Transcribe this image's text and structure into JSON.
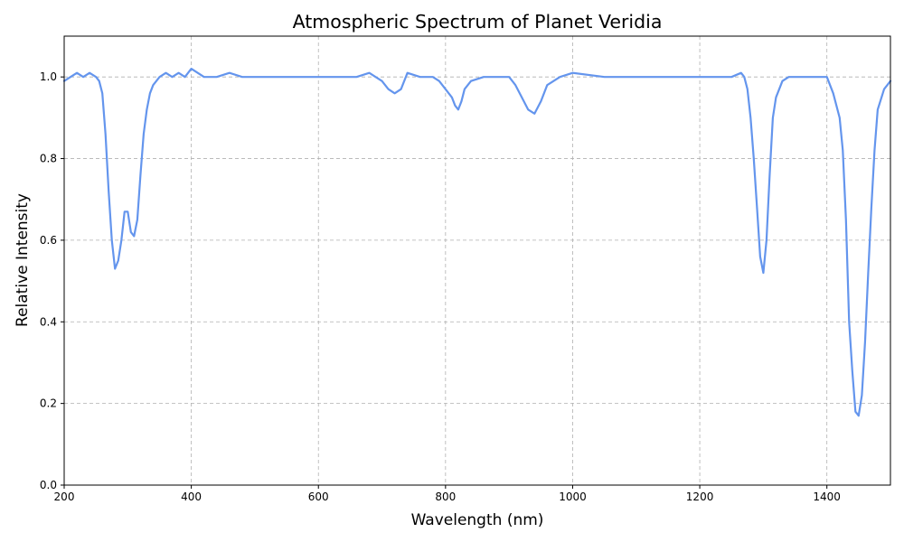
{
  "chart_data": {
    "type": "line",
    "title": "Atmospheric Spectrum of Planet Veridia",
    "xlabel": "Wavelength (nm)",
    "ylabel": "Relative Intensity",
    "xlim": [
      200,
      1500
    ],
    "ylim": [
      0,
      1.1
    ],
    "xticks": [
      200,
      400,
      600,
      800,
      1000,
      1200,
      1400
    ],
    "xtick_labels": [
      "200",
      "400",
      "600",
      "800",
      "1000",
      "1200",
      "1400"
    ],
    "yticks": [
      0,
      0.2,
      0.4,
      0.6,
      0.8,
      1.0
    ],
    "ytick_labels": [
      "0.0",
      "0.2",
      "0.4",
      "0.6",
      "0.8",
      "1.0"
    ],
    "grid": true,
    "line_color": "#6495ED",
    "series": [
      {
        "x": [
          200,
          210,
          220,
          230,
          240,
          250,
          255,
          260,
          265,
          270,
          275,
          280,
          285,
          290,
          295,
          300,
          305,
          310,
          315,
          320,
          325,
          330,
          335,
          340,
          350,
          360,
          370,
          380,
          390,
          400,
          420,
          440,
          460,
          480,
          500,
          520,
          540,
          560,
          580,
          600,
          620,
          640,
          660,
          680,
          700,
          710,
          720,
          730,
          740,
          760,
          780,
          790,
          800,
          810,
          815,
          820,
          825,
          830,
          840,
          860,
          880,
          900,
          910,
          920,
          930,
          940,
          950,
          960,
          980,
          1000,
          1050,
          1100,
          1150,
          1200,
          1250,
          1265,
          1270,
          1275,
          1280,
          1285,
          1290,
          1295,
          1300,
          1305,
          1310,
          1315,
          1320,
          1330,
          1340,
          1360,
          1380,
          1400,
          1410,
          1420,
          1425,
          1430,
          1435,
          1440,
          1445,
          1450,
          1455,
          1460,
          1465,
          1470,
          1475,
          1480,
          1490,
          1500
        ],
        "y": [
          0.99,
          1.0,
          1.01,
          1.0,
          1.01,
          1.0,
          0.99,
          0.96,
          0.86,
          0.72,
          0.6,
          0.53,
          0.55,
          0.6,
          0.67,
          0.67,
          0.62,
          0.61,
          0.65,
          0.76,
          0.86,
          0.92,
          0.96,
          0.98,
          1.0,
          1.01,
          1.0,
          1.01,
          1.0,
          1.02,
          1.0,
          1.0,
          1.01,
          1.0,
          1.0,
          1.0,
          1.0,
          1.0,
          1.0,
          1.0,
          1.0,
          1.0,
          1.0,
          1.01,
          0.99,
          0.97,
          0.96,
          0.97,
          1.01,
          1.0,
          1.0,
          0.99,
          0.97,
          0.95,
          0.93,
          0.92,
          0.94,
          0.97,
          0.99,
          1.0,
          1.0,
          1.0,
          0.98,
          0.95,
          0.92,
          0.91,
          0.94,
          0.98,
          1.0,
          1.01,
          1.0,
          1.0,
          1.0,
          1.0,
          1.0,
          1.01,
          1.0,
          0.97,
          0.9,
          0.8,
          0.68,
          0.56,
          0.52,
          0.6,
          0.76,
          0.9,
          0.95,
          0.99,
          1.0,
          1.0,
          1.0,
          1.0,
          0.96,
          0.9,
          0.82,
          0.65,
          0.4,
          0.28,
          0.18,
          0.17,
          0.22,
          0.35,
          0.52,
          0.68,
          0.82,
          0.92,
          0.97,
          0.99
        ]
      }
    ]
  }
}
